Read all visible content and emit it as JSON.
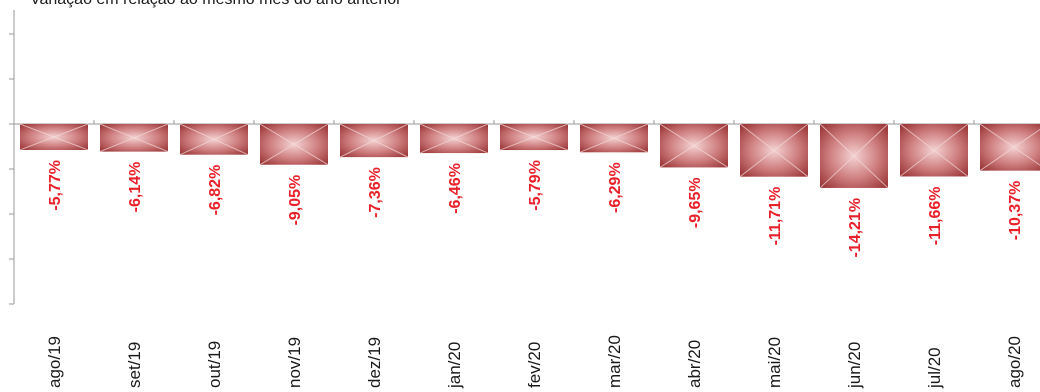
{
  "chart_data": {
    "type": "bar",
    "subtitle": "Variação em relação ao mesmo mês do ano anterior",
    "categories": [
      "ago/19",
      "set/19",
      "out/19",
      "nov/19",
      "dez/19",
      "jan/20",
      "fev/20",
      "mar/20",
      "abr/20",
      "mai/20",
      "jun/20",
      "jul/20",
      "ago/20"
    ],
    "values": [
      -5.77,
      -6.14,
      -6.82,
      -9.05,
      -7.36,
      -6.46,
      -5.79,
      -6.29,
      -9.65,
      -11.71,
      -14.21,
      -11.66,
      -10.37
    ],
    "data_labels": [
      "-5,77%",
      "-6,14%",
      "-6,82%",
      "-9,05%",
      "-7,36%",
      "-6,46%",
      "-5,79%",
      "-6,29%",
      "-9,65%",
      "-11,71%",
      "-14,21%",
      "-11,66%",
      "-10,37%"
    ],
    "ylim": [
      -40,
      25
    ],
    "grid": false,
    "legend": "none",
    "colors": {
      "bar_dark": "#9e3a3c",
      "bar_light": "#f0c8c8",
      "label": "#e8202a",
      "axis": "#9a9a9a"
    }
  }
}
